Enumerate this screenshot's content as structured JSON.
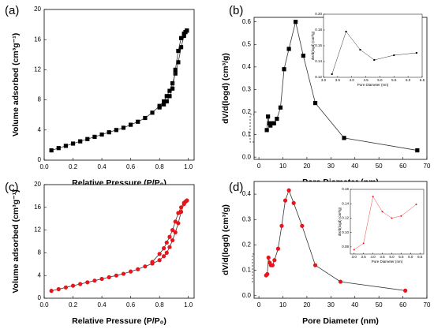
{
  "chart_data": [
    {
      "type": "line",
      "title": "(a)",
      "x_label": "Relative Pressure (P/P₀)",
      "y_label": "Volume adsorbed (cm³g⁻¹)",
      "xlim": [
        0,
        1.04
      ],
      "ylim": [
        0,
        20
      ],
      "xticks": [
        {
          "value": 0,
          "label": "0.0"
        },
        {
          "value": 0.2,
          "label": "0.2"
        },
        {
          "value": 0.4,
          "label": "0.4"
        },
        {
          "value": 0.6,
          "label": "0.6"
        },
        {
          "value": 0.8,
          "label": "0.8"
        },
        {
          "value": 1,
          "label": "1.0"
        }
      ],
      "yticks": [
        0,
        4,
        8,
        12,
        16,
        20
      ],
      "marker": "square",
      "series": [
        {
          "color": "#000000",
          "x": [
            0.05,
            0.1,
            0.15,
            0.2,
            0.25,
            0.3,
            0.35,
            0.4,
            0.45,
            0.5,
            0.55,
            0.6,
            0.65,
            0.7,
            0.75,
            0.8,
            0.83,
            0.85,
            0.87,
            0.89,
            0.91,
            0.93,
            0.95,
            0.97,
            0.98,
            0.99
          ],
          "values": [
            1.3,
            1.6,
            1.9,
            2.2,
            2.5,
            2.8,
            3.1,
            3.4,
            3.7,
            4.0,
            4.3,
            4.7,
            5.1,
            5.6,
            6.3,
            7.2,
            7.8,
            8.5,
            9.2,
            10.2,
            11.5,
            13.0,
            15.0,
            16.5,
            17.0,
            17.2
          ]
        },
        {
          "color": "#000000",
          "x": [
            0.99,
            0.97,
            0.95,
            0.93,
            0.91,
            0.89,
            0.87,
            0.85,
            0.83,
            0.8
          ],
          "values": [
            17.2,
            16.8,
            16.2,
            14.5,
            12.0,
            9.5,
            8.5,
            7.8,
            7.4,
            7.0
          ]
        }
      ]
    },
    {
      "type": "line",
      "title": "(b)",
      "x_label": "Pore Diameter (nm)",
      "y_label": "dV/d(logd) (cm³/g)",
      "xlim": [
        -2,
        70
      ],
      "ylim": [
        -0.01,
        0.62
      ],
      "xticks": [
        0,
        10,
        20,
        30,
        40,
        50,
        60,
        70
      ],
      "yticks": [
        {
          "value": 0,
          "label": "0.0"
        },
        0.1,
        0.2,
        0.3,
        0.4,
        0.5,
        0.6
      ],
      "marker": "square",
      "series": [
        {
          "color": "#000000",
          "x": [
            3.3,
            3.8,
            4.3,
            4.8,
            5.5,
            6.3,
            7.5,
            9,
            10.5,
            12.5,
            15.3,
            18.5,
            23.5,
            35.5,
            66
          ],
          "values": [
            0.12,
            0.18,
            0.15,
            0.14,
            0.15,
            0.15,
            0.17,
            0.22,
            0.39,
            0.48,
            0.6,
            0.45,
            0.24,
            0.085,
            0.03
          ]
        }
      ]
    },
    {
      "type": "line",
      "x_label": "Pore Diameter (nm)",
      "y_label": "dV/d(logd) (cm³/g)",
      "xlim": [
        3,
        6.5
      ],
      "ylim": [
        0.12,
        0.2
      ],
      "xticks": [
        {
          "value": 3,
          "label": "3.0"
        },
        3.5,
        {
          "value": 4,
          "label": "4.0"
        },
        4.5,
        {
          "value": 5,
          "label": "5.0"
        },
        5.5,
        {
          "value": 6,
          "label": "6.0"
        },
        6.5
      ],
      "yticks": [
        0.12,
        0.14,
        0.16,
        0.18,
        {
          "value": 0.2,
          "label": "0.20"
        }
      ],
      "marker": "square",
      "series": [
        {
          "color": "#000000",
          "x": [
            3.3,
            3.8,
            4.3,
            4.8,
            5.5,
            6.3
          ],
          "values": [
            0.124,
            0.178,
            0.155,
            0.142,
            0.148,
            0.151
          ]
        }
      ]
    },
    {
      "type": "line",
      "title": "(c)",
      "x_label": "Relative Pressure (P/P₀)",
      "y_label": "Volume adsorbed (cm³g⁻¹)",
      "xlim": [
        0,
        1.04
      ],
      "ylim": [
        0,
        20
      ],
      "xticks": [
        {
          "value": 0,
          "label": "0.0"
        },
        {
          "value": 0.2,
          "label": "0.2"
        },
        {
          "value": 0.4,
          "label": "0.4"
        },
        {
          "value": 0.6,
          "label": "0.6"
        },
        {
          "value": 0.8,
          "label": "0.8"
        },
        {
          "value": 1,
          "label": "1.0"
        }
      ],
      "yticks": [
        0,
        4,
        8,
        12,
        16,
        20
      ],
      "marker": "circle",
      "series": [
        {
          "color": "#e8141c",
          "x": [
            0.05,
            0.1,
            0.15,
            0.2,
            0.25,
            0.3,
            0.35,
            0.4,
            0.45,
            0.5,
            0.55,
            0.6,
            0.65,
            0.7,
            0.75,
            0.8,
            0.83,
            0.85,
            0.87,
            0.89,
            0.91,
            0.93,
            0.95,
            0.97,
            0.98,
            0.99
          ],
          "values": [
            1.3,
            1.6,
            1.9,
            2.2,
            2.5,
            2.8,
            3.1,
            3.4,
            3.7,
            4.0,
            4.3,
            4.7,
            5.1,
            5.6,
            6.1,
            6.7,
            7.4,
            8.0,
            9.0,
            10.2,
            11.6,
            13.2,
            15.2,
            16.6,
            17.0,
            17.2
          ]
        },
        {
          "color": "#e8141c",
          "x": [
            0.99,
            0.97,
            0.95,
            0.93,
            0.91,
            0.89,
            0.87,
            0.85,
            0.83,
            0.8,
            0.75
          ],
          "values": [
            17.2,
            16.8,
            16.0,
            15.0,
            13.5,
            12.0,
            10.8,
            9.8,
            8.8,
            7.8,
            6.4
          ]
        }
      ]
    },
    {
      "type": "line",
      "title": "(d)",
      "x_label": "Pore Diameter (nm)",
      "y_label": "dV/d(logd) (cm³/g)",
      "xlim": [
        -2,
        70
      ],
      "ylim": [
        -0.01,
        0.45
      ],
      "xticks": [
        0,
        10,
        20,
        30,
        40,
        50,
        60,
        70
      ],
      "yticks": [
        {
          "value": 0,
          "label": "0.0"
        },
        0.1,
        0.2,
        0.3,
        0.4
      ],
      "marker": "circle",
      "series": [
        {
          "color": "#e8141c",
          "x": [
            3,
            3.5,
            4,
            4.5,
            5,
            5.7,
            6.5,
            8,
            9.5,
            11,
            12.5,
            14.5,
            18,
            23.5,
            34,
            61
          ],
          "values": [
            0.08,
            0.085,
            0.15,
            0.13,
            0.12,
            0.12,
            0.14,
            0.185,
            0.275,
            0.375,
            0.415,
            0.365,
            0.275,
            0.12,
            0.055,
            0.02
          ]
        }
      ]
    },
    {
      "type": "line",
      "x_label": "Pore Diameter (nm)",
      "y_label": "dV/d(logd) (cm³/g)",
      "xlim": [
        2.8,
        6.7
      ],
      "ylim": [
        0.07,
        0.16
      ],
      "xticks": [
        {
          "value": 3,
          "label": "3.0"
        },
        3.5,
        {
          "value": 4,
          "label": "4.0"
        },
        4.5,
        {
          "value": 5,
          "label": "5.0"
        },
        5.5,
        {
          "value": 6,
          "label": "6.0"
        },
        6.5
      ],
      "yticks": [
        0.08,
        {
          "value": 0.1,
          "label": "0.10"
        },
        0.12,
        0.14,
        0.16
      ],
      "marker": "circle",
      "series": [
        {
          "color": "#e8141c",
          "x": [
            3.0,
            3.5,
            4.0,
            4.5,
            5.0,
            5.5,
            6.3
          ],
          "values": [
            0.076,
            0.085,
            0.15,
            0.129,
            0.12,
            0.123,
            0.139
          ]
        }
      ]
    }
  ]
}
